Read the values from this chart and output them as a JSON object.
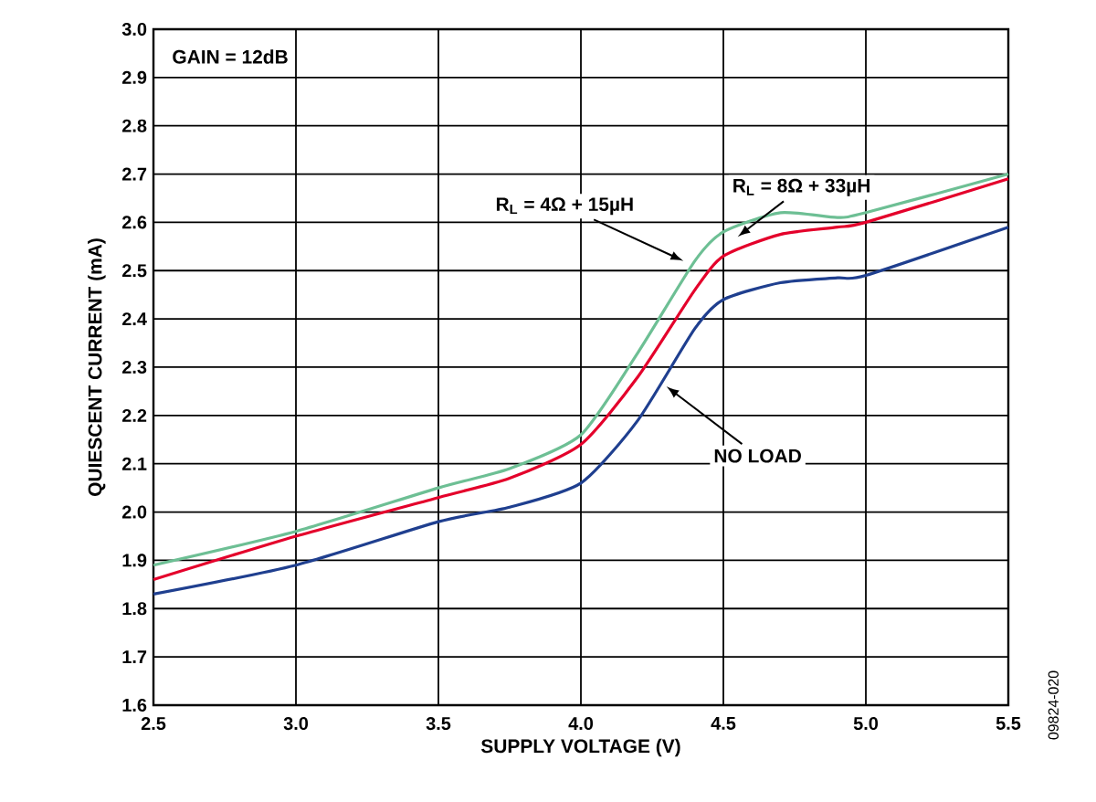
{
  "chart_data": {
    "type": "line",
    "xlabel": "SUPPLY VOLTAGE (V)",
    "ylabel": "QUIESCENT CURRENT (mA)",
    "x": [
      2.5,
      3.0,
      3.5,
      3.75,
      4.0,
      4.2,
      4.4,
      4.5,
      4.7,
      4.9,
      5.0,
      5.5
    ],
    "series": [
      {
        "color": "#6dbf94",
        "values": [
          1.89,
          1.96,
          2.05,
          2.09,
          2.16,
          2.33,
          2.52,
          2.58,
          2.62,
          2.61,
          2.62,
          2.7
        ]
      },
      {
        "color": "#e4002b",
        "values": [
          1.86,
          1.95,
          2.03,
          2.07,
          2.14,
          2.28,
          2.46,
          2.53,
          2.575,
          2.59,
          2.6,
          2.69
        ]
      },
      {
        "color": "#1f3f8f",
        "values": [
          1.83,
          1.89,
          1.98,
          2.01,
          2.06,
          2.19,
          2.38,
          2.44,
          2.475,
          2.485,
          2.49,
          2.59
        ]
      }
    ],
    "xlim": [
      2.5,
      5.5
    ],
    "ylim": [
      1.6,
      3.0
    ],
    "xticks": [
      {
        "value": 2.5,
        "label": "2.5"
      },
      {
        "value": 3.0,
        "label": "3.0"
      },
      {
        "value": 3.5,
        "label": "3.5"
      },
      {
        "value": 4.0,
        "label": "4.0"
      },
      {
        "value": 4.5,
        "label": "4.5"
      },
      {
        "value": 5.0,
        "label": "5.0"
      },
      {
        "value": 5.5,
        "label": "5.5"
      }
    ],
    "yticks": [
      {
        "value": 1.6,
        "label": "1.6"
      },
      {
        "value": 1.7,
        "label": "1.7"
      },
      {
        "value": 1.8,
        "label": "1.8"
      },
      {
        "value": 1.9,
        "label": "1.9"
      },
      {
        "value": 2.0,
        "label": "2.0"
      },
      {
        "value": 2.1,
        "label": "2.1"
      },
      {
        "value": 2.2,
        "label": "2.2"
      },
      {
        "value": 2.3,
        "label": "2.3"
      },
      {
        "value": 2.4,
        "label": "2.4"
      },
      {
        "value": 2.5,
        "label": "2.5"
      },
      {
        "value": 2.6,
        "label": "2.6"
      },
      {
        "value": 2.7,
        "label": "2.7"
      },
      {
        "value": 2.8,
        "label": "2.8"
      },
      {
        "value": 2.9,
        "label": "2.9"
      },
      {
        "value": 3.0,
        "label": "3.0"
      }
    ],
    "grid": true,
    "marker": "none",
    "line_style": "solid",
    "annotations": [
      "GAIN = 12dB",
      {
        "text": "R$_{L}$ = 4Ω + 15µH",
        "x": 4.36,
        "y": 2.52
      },
      {
        "text": "R$_{L}$ = 8Ω + 33µH",
        "x": 4.55,
        "y": 2.57
      },
      {
        "text": "NO LOAD",
        "x": 4.3,
        "y": 2.26
      },
      "09824-020"
    ]
  }
}
